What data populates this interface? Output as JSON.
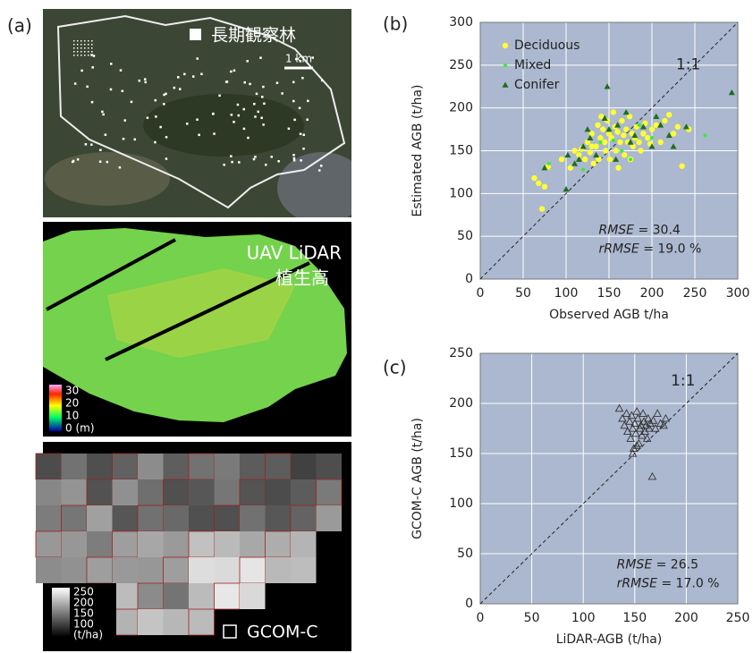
{
  "panel_a": {
    "label": "(a)",
    "legend_text": "長期観察林",
    "scale_bar": "1 km",
    "lidar_title": [
      "UAV LiDAR",
      "植生高"
    ],
    "lidar_colorbar": [
      30,
      20,
      10,
      "0 (m)"
    ],
    "gcom_colorbar": [
      250,
      200,
      150,
      100,
      "(t/ha)"
    ],
    "gcom_legend": "GCOM-C"
  },
  "chart_data": [
    {
      "type": "scatter",
      "panel_label": "(b)",
      "xlabel": "Observed AGB t/ha",
      "ylabel": "Estimated AGB (t/ha)",
      "xlim": [
        0,
        300
      ],
      "ylim": [
        0,
        300
      ],
      "xticks": [
        0,
        50,
        100,
        150,
        200,
        250,
        300
      ],
      "yticks": [
        0,
        50,
        100,
        150,
        200,
        250,
        300
      ],
      "grid": true,
      "legend": "upper left",
      "reference_line": "1:1",
      "annotations": [
        [
          "RMSE",
          " = 30.4"
        ],
        [
          "rRMSE",
          " = 19.0 %"
        ]
      ],
      "series": [
        {
          "name": "Deciduous",
          "color": "#ffff33",
          "marker": "circle",
          "x": [
            63,
            68,
            72,
            75,
            79,
            95,
            105,
            110,
            115,
            118,
            122,
            125,
            128,
            130,
            132,
            135,
            137,
            140,
            141,
            143,
            145,
            146,
            148,
            150,
            151,
            153,
            155,
            157,
            158,
            160,
            161,
            163,
            165,
            167,
            168,
            170,
            172,
            174,
            175,
            177,
            178,
            180,
            182,
            185,
            187,
            190,
            192,
            195,
            198,
            200,
            205,
            210,
            215,
            220,
            225,
            230,
            235,
            243,
            130,
            138
          ],
          "values": [
            118,
            112,
            82,
            108,
            131,
            140,
            130,
            150,
            145,
            152,
            140,
            160,
            148,
            170,
            135,
            155,
            180,
            165,
            190,
            175,
            160,
            150,
            185,
            170,
            140,
            165,
            195,
            178,
            150,
            172,
            130,
            160,
            185,
            168,
            145,
            175,
            160,
            190,
            140,
            170,
            155,
            165,
            178,
            160,
            150,
            170,
            182,
            165,
            158,
            175,
            180,
            160,
            185,
            192,
            170,
            178,
            132,
            175,
            155,
            140
          ]
        },
        {
          "name": "Mixed",
          "color": "#33ee33",
          "marker": "small-circle",
          "x": [
            80,
            120,
            140,
            150,
            155,
            165,
            175,
            200,
            262,
            185
          ],
          "values": [
            135,
            128,
            160,
            175,
            162,
            150,
            140,
            165,
            168,
            180
          ]
        },
        {
          "name": "Conifer",
          "color": "#1f6b1f",
          "marker": "triangle",
          "x": [
            75,
            100,
            102,
            110,
            115,
            120,
            125,
            128,
            135,
            145,
            148,
            150,
            158,
            160,
            170,
            175,
            180,
            190,
            200,
            205,
            210,
            220,
            225,
            240,
            293
          ],
          "values": [
            130,
            105,
            145,
            135,
            140,
            155,
            175,
            165,
            145,
            188,
            225,
            175,
            140,
            180,
            195,
            160,
            168,
            178,
            155,
            190,
            180,
            168,
            155,
            178,
            218
          ]
        }
      ]
    },
    {
      "type": "scatter",
      "panel_label": "(c)",
      "xlabel": "LiDAR-AGB (t/ha)",
      "ylabel": "GCOM-C AGB (t/ha)",
      "xlim": [
        0,
        250
      ],
      "ylim": [
        0,
        250
      ],
      "xticks": [
        0,
        50,
        100,
        150,
        200,
        250
      ],
      "yticks": [
        0,
        50,
        100,
        150,
        200,
        250
      ],
      "grid": true,
      "reference_line": "1:1",
      "annotations": [
        [
          "RMSE",
          " = 26.5"
        ],
        [
          "rRMSE",
          " = 17.0 %"
        ]
      ],
      "series": [
        {
          "color": "#333333",
          "marker": "open-triangle",
          "x": [
            135,
            138,
            140,
            142,
            143,
            145,
            146,
            147,
            148,
            149,
            150,
            151,
            152,
            153,
            154,
            155,
            156,
            157,
            158,
            159,
            160,
            161,
            162,
            163,
            164,
            165,
            167,
            168,
            170,
            172,
            175,
            178,
            180,
            148,
            152
          ],
          "values": [
            195,
            185,
            178,
            190,
            172,
            182,
            165,
            188,
            175,
            155,
            180,
            170,
            192,
            185,
            160,
            175,
            178,
            168,
            190,
            182,
            172,
            178,
            165,
            185,
            175,
            180,
            127,
            183,
            175,
            190,
            180,
            178,
            185,
            150,
            158
          ]
        }
      ]
    }
  ]
}
